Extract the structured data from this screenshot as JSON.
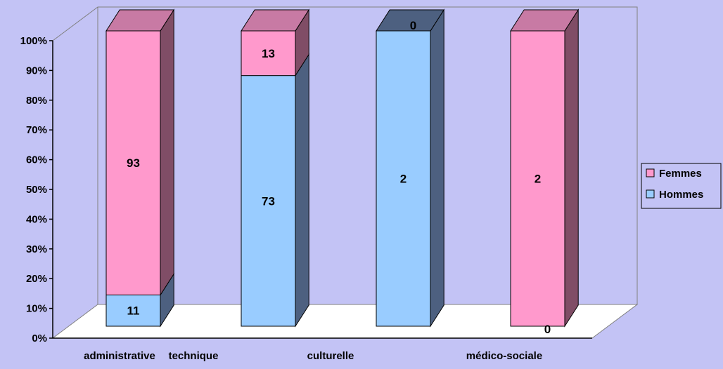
{
  "chart_data": {
    "type": "bar",
    "stacked": "percent",
    "three_d": true,
    "categories": [
      "administrative",
      "technique",
      "culturelle",
      "médico-sociale"
    ],
    "series": [
      {
        "name": "Hommes",
        "values": [
          11,
          73,
          2,
          0
        ],
        "color": "#99ccff",
        "side_color": "#4d6080",
        "top_color": "#4d6080"
      },
      {
        "name": "Femmes",
        "values": [
          93,
          13,
          0,
          2
        ],
        "color": "#ff99cc",
        "side_color": "#804d66",
        "top_color": "#c87aa4"
      }
    ],
    "y_ticks": [
      "0%",
      "10%",
      "20%",
      "30%",
      "40%",
      "50%",
      "60%",
      "70%",
      "80%",
      "90%",
      "100%"
    ],
    "ylim": [
      0,
      100
    ],
    "legend_position": "right",
    "background_color": "#c3c3f5",
    "floor_color": "#ffffff",
    "gridlines": false
  }
}
